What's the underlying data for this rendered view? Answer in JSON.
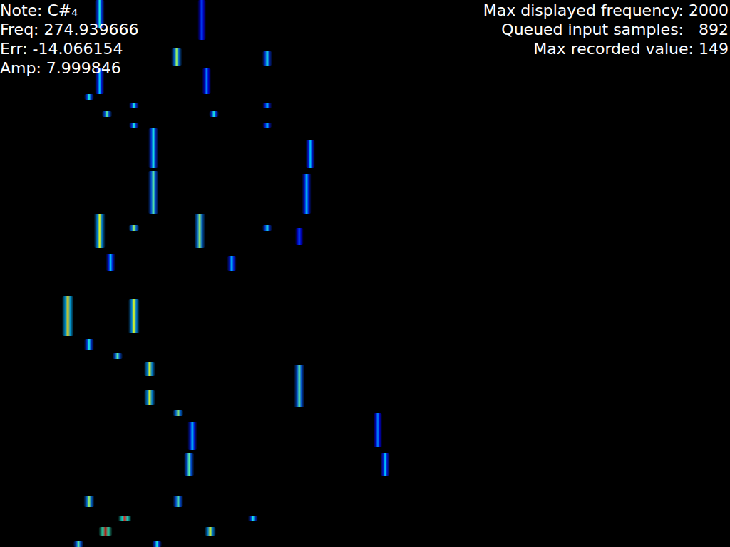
{
  "chart_data": {
    "type": "spectrogram",
    "annotations": [
      "Note: C#₄",
      "Freq: 274.939666",
      "Err: -14.066154",
      "Amp: 7.999846"
    ],
    "annotations_right": [
      "Max displayed frequency: 2000",
      "Queued input samples:   892",
      "Max recorded value: 149"
    ],
    "xlim": [
      0,
      2000
    ],
    "ylim": [
      0,
      192
    ],
    "zlim": [
      0,
      149
    ],
    "tick_labels": false,
    "frequency": [
      273,
      553,
      484,
      732,
      273,
      566,
      244,
      293,
      367,
      367,
      586,
      732,
      732,
      420,
      850,
      420,
      840,
      273,
      367,
      547,
      732,
      820,
      303,
      635,
      186,
      367,
      244,
      322,
      410,
      410,
      820,
      488,
      527,
      1035,
      518,
      1055,
      244,
      488,
      342,
      289,
      576,
      693,
      215,
      430
    ],
    "frame": [
      0,
      0,
      17,
      18,
      24,
      24,
      33,
      39,
      36,
      43,
      39,
      36,
      43,
      45,
      49,
      60,
      61,
      75,
      79,
      75,
      79,
      80,
      89,
      90,
      104,
      105,
      119,
      124,
      127,
      137,
      128,
      144,
      148,
      145,
      159,
      159,
      174,
      174,
      181,
      185,
      185,
      181,
      190,
      190
    ],
    "duration": [
      10,
      14,
      6,
      5,
      9,
      9,
      2,
      2,
      2,
      2,
      2,
      2,
      2,
      14,
      10,
      15,
      14,
      12,
      2,
      12,
      2,
      6,
      6,
      5,
      14,
      12,
      4,
      2,
      5,
      5,
      15,
      2,
      10,
      12,
      8,
      8,
      4,
      4,
      2,
      3,
      3,
      2,
      2,
      2
    ],
    "values": [
      60,
      30,
      80,
      60,
      50,
      40,
      60,
      70,
      60,
      60,
      60,
      50,
      50,
      60,
      50,
      70,
      50,
      90,
      80,
      80,
      60,
      30,
      50,
      50,
      100,
      90,
      60,
      70,
      90,
      90,
      70,
      80,
      50,
      40,
      70,
      50,
      80,
      70,
      130,
      140,
      90,
      60,
      70,
      60
    ]
  }
}
